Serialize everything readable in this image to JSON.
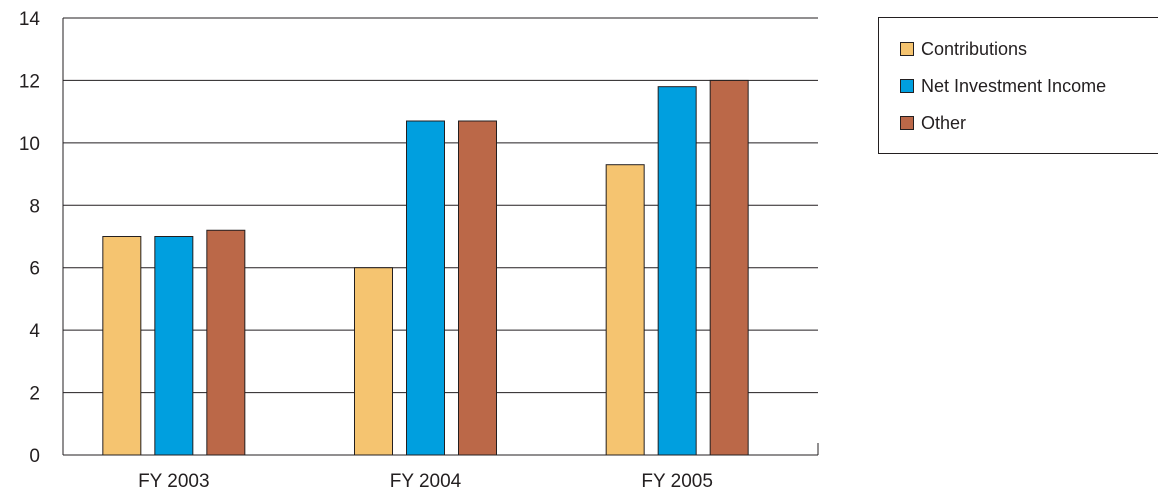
{
  "chart_data": {
    "type": "bar",
    "title": "",
    "xlabel": "",
    "ylabel": "",
    "categories": [
      "FY 2003",
      "FY 2004",
      "FY 2005"
    ],
    "ylim": [
      0,
      14
    ],
    "yticks": [
      "0",
      "2",
      "4",
      "6",
      "8",
      "10",
      "12",
      "14"
    ],
    "grid": true,
    "legend_position": "top-right",
    "series": [
      {
        "name": "Contributions",
        "color": "#f5c470",
        "values": [
          7.0,
          6.0,
          9.3
        ]
      },
      {
        "name": "Net Investment Income",
        "color": "#009fdf",
        "values": [
          7.0,
          10.7,
          11.8
        ]
      },
      {
        "name": "Other",
        "color": "#bb6848",
        "values": [
          7.2,
          10.7,
          12.0
        ]
      }
    ]
  }
}
